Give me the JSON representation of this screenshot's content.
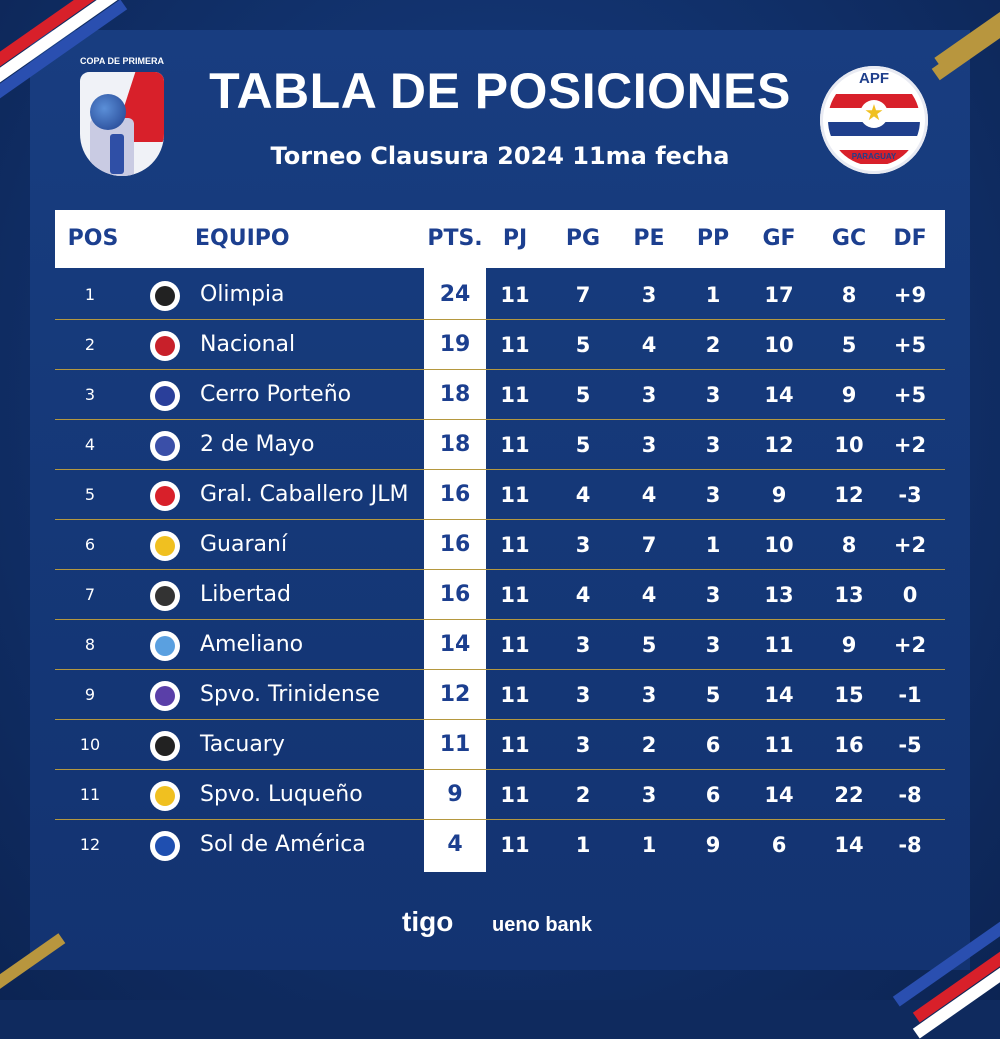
{
  "header": {
    "title": "TABLA DE POSICIONES",
    "subtitle": "Torneo Clausura 2024 11ma fecha",
    "left_logo_text": "COPA DE PRIMERA",
    "right_logo_text": "APF",
    "right_logo_country": "PARAGUAY"
  },
  "columns": {
    "pos": "POS",
    "team": "EQUIPO",
    "pts": "PTS.",
    "pj": "PJ",
    "pg": "PG",
    "pe": "PE",
    "pp": "PP",
    "gf": "GF",
    "gc": "GC",
    "df": "DF"
  },
  "rows": [
    {
      "pos": "1",
      "team": "Olimpia",
      "pts": "24",
      "pj": "11",
      "pg": "7",
      "pe": "3",
      "pp": "1",
      "gf": "17",
      "gc": "8",
      "df": "+9",
      "crest": "#222222"
    },
    {
      "pos": "2",
      "team": "Nacional",
      "pts": "19",
      "pj": "11",
      "pg": "5",
      "pe": "4",
      "pp": "2",
      "gf": "10",
      "gc": "5",
      "df": "+5",
      "crest": "#c8202a"
    },
    {
      "pos": "3",
      "team": "Cerro Porteño",
      "pts": "18",
      "pj": "11",
      "pg": "5",
      "pe": "3",
      "pp": "3",
      "gf": "14",
      "gc": "9",
      "df": "+5",
      "crest": "#2a3f9a"
    },
    {
      "pos": "4",
      "team": "2 de Mayo",
      "pts": "18",
      "pj": "11",
      "pg": "5",
      "pe": "3",
      "pp": "3",
      "gf": "12",
      "gc": "10",
      "df": "+2",
      "crest": "#3a4fa8"
    },
    {
      "pos": "5",
      "team": "Gral. Caballero JLM",
      "pts": "16",
      "pj": "11",
      "pg": "4",
      "pe": "4",
      "pp": "3",
      "gf": "9",
      "gc": "12",
      "df": "-3",
      "crest": "#d8202a"
    },
    {
      "pos": "6",
      "team": "Guaraní",
      "pts": "16",
      "pj": "11",
      "pg": "3",
      "pe": "7",
      "pp": "1",
      "gf": "10",
      "gc": "8",
      "df": "+2",
      "crest": "#f0c020"
    },
    {
      "pos": "7",
      "team": "Libertad",
      "pts": "16",
      "pj": "11",
      "pg": "4",
      "pe": "4",
      "pp": "3",
      "gf": "13",
      "gc": "13",
      "df": "0",
      "crest": "#333333"
    },
    {
      "pos": "8",
      "team": "Ameliano",
      "pts": "14",
      "pj": "11",
      "pg": "3",
      "pe": "5",
      "pp": "3",
      "gf": "11",
      "gc": "9",
      "df": "+2",
      "crest": "#5aa0e0"
    },
    {
      "pos": "9",
      "team": "Spvo. Trinidense",
      "pts": "12",
      "pj": "11",
      "pg": "3",
      "pe": "3",
      "pp": "5",
      "gf": "14",
      "gc": "15",
      "df": "-1",
      "crest": "#5a3fa8"
    },
    {
      "pos": "10",
      "team": "Tacuary",
      "pts": "11",
      "pj": "11",
      "pg": "3",
      "pe": "2",
      "pp": "6",
      "gf": "11",
      "gc": "16",
      "df": "-5",
      "crest": "#222222"
    },
    {
      "pos": "11",
      "team": "Spvo. Luqueño",
      "pts": "9",
      "pj": "11",
      "pg": "2",
      "pe": "3",
      "pp": "6",
      "gf": "14",
      "gc": "22",
      "df": "-8",
      "crest": "#f0c020"
    },
    {
      "pos": "12",
      "team": "Sol de América",
      "pts": "4",
      "pj": "11",
      "pg": "1",
      "pe": "1",
      "pp": "9",
      "gf": "6",
      "gc": "14",
      "df": "-8",
      "crest": "#1f4fb0"
    }
  ],
  "sponsors": {
    "sponsor_1": "tigo",
    "sponsor_2": "ueno bank"
  },
  "colors": {
    "background": "#153878",
    "header_text": "#1c3f8f",
    "separator": "#b5983f",
    "accent_red": "#d8202a"
  }
}
